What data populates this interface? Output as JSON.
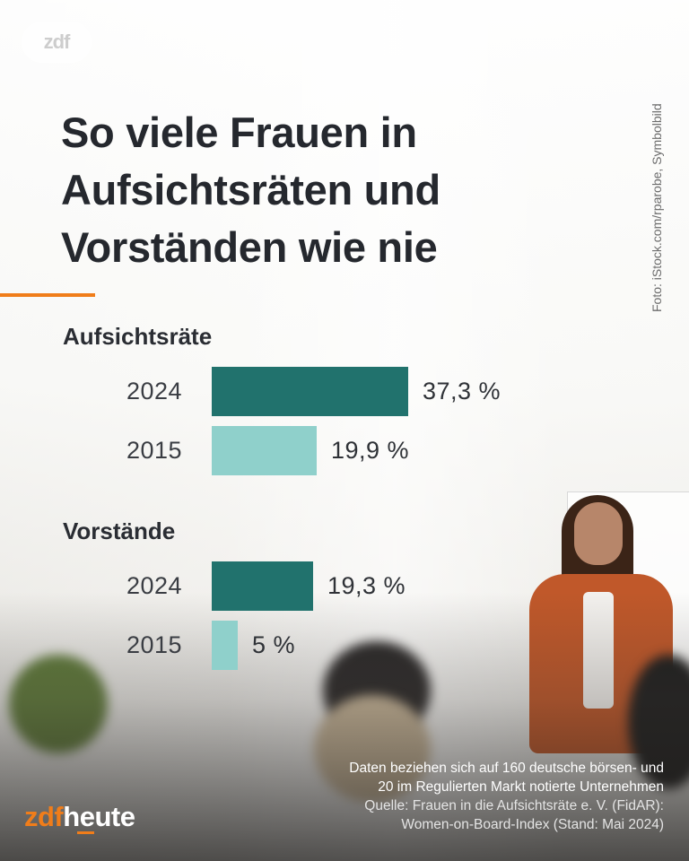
{
  "title": "So viele Frauen in Aufsichtsräten und Vorständen wie nie",
  "photo_credit": "Foto: iStock.com/rparobe, Symbolbild",
  "watermark": "zdf",
  "footnote": {
    "line1": "Daten beziehen sich auf 160 deutsche börsen- und",
    "line2": "20 im Regulierten Markt notierte Unternehmen",
    "line3": "Quelle: Frauen in die Aufsichtsräte e. V. (FidAR):",
    "line4": "Women-on-Board-Index (Stand: Mai 2024)"
  },
  "logo": {
    "zdf": "zdf",
    "heute": "heute"
  },
  "colors": {
    "bar_2024": "#21726d",
    "bar_2015": "#8fd0cb",
    "accent": "#f07d1a"
  },
  "chart_data": {
    "type": "bar",
    "orientation": "horizontal",
    "title": "So viele Frauen in Aufsichtsräten und Vorständen wie nie",
    "unit": "%",
    "xlim": [
      0,
      40
    ],
    "groups": [
      {
        "name": "Aufsichtsräte",
        "bars": [
          {
            "year": "2024",
            "value": 37.3,
            "label": "37,3 %"
          },
          {
            "year": "2015",
            "value": 19.9,
            "label": "19,9 %"
          }
        ]
      },
      {
        "name": "Vorstände",
        "bars": [
          {
            "year": "2024",
            "value": 19.3,
            "label": "19,3 %"
          },
          {
            "year": "2015",
            "value": 5,
            "label": "5 %"
          }
        ]
      }
    ]
  }
}
